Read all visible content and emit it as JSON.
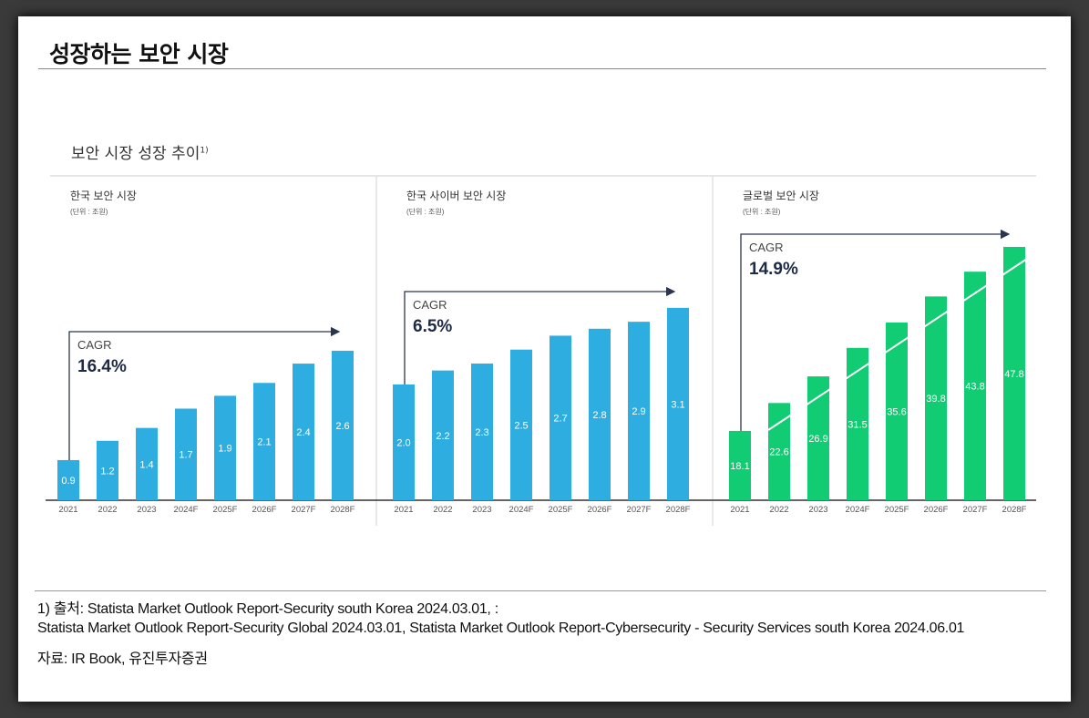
{
  "title": "성장하는 보안 시장",
  "subtitle": "보안 시장 성장 추이",
  "subtitle_note": "1)",
  "colors": {
    "blue": "#2eaee0",
    "green": "#12cc73",
    "axis": "#333333",
    "arrow": "#2a3550"
  },
  "chart_data": [
    {
      "type": "bar",
      "title": "한국 보안 시장",
      "unit": "(단위 : 조원)",
      "cagr_label": "CAGR",
      "cagr": "16.4%",
      "categories": [
        "2021",
        "2022",
        "2023",
        "2024F",
        "2025F",
        "2026F",
        "2027F",
        "2028F"
      ],
      "values": [
        0.9,
        1.2,
        1.4,
        1.7,
        1.9,
        2.1,
        2.4,
        2.6
      ],
      "color": "#2eaee0",
      "trendline": false
    },
    {
      "type": "bar",
      "title": "한국 사이버 보안 시장",
      "unit": "(단위 : 조원)",
      "cagr_label": "CAGR",
      "cagr": "6.5%",
      "categories": [
        "2021",
        "2022",
        "2023",
        "2024F",
        "2025F",
        "2026F",
        "2027F",
        "2028F"
      ],
      "values": [
        2.0,
        2.2,
        2.3,
        2.5,
        2.7,
        2.8,
        2.9,
        3.1
      ],
      "color": "#2eaee0",
      "trendline": false
    },
    {
      "type": "bar",
      "title": "글로벌 보안 시장",
      "unit": "(단위 : 조원)",
      "cagr_label": "CAGR",
      "cagr": "14.9%",
      "categories": [
        "2021",
        "2022",
        "2023",
        "2024F",
        "2025F",
        "2026F",
        "2027F",
        "2028F"
      ],
      "values": [
        18.1,
        22.6,
        26.9,
        31.5,
        35.6,
        39.8,
        43.8,
        47.8
      ],
      "color": "#12cc73",
      "trendline": true
    }
  ],
  "footnotes": [
    "1) 출처: Statista Market Outlook Report-Security south Korea 2024.03.01, :",
    "Statista Market Outlook Report-Security Global 2024.03.01, Statista Market Outlook Report-Cybersecurity - Security Services south Korea 2024.06.01",
    "자료: IR Book, 유진투자증권"
  ]
}
